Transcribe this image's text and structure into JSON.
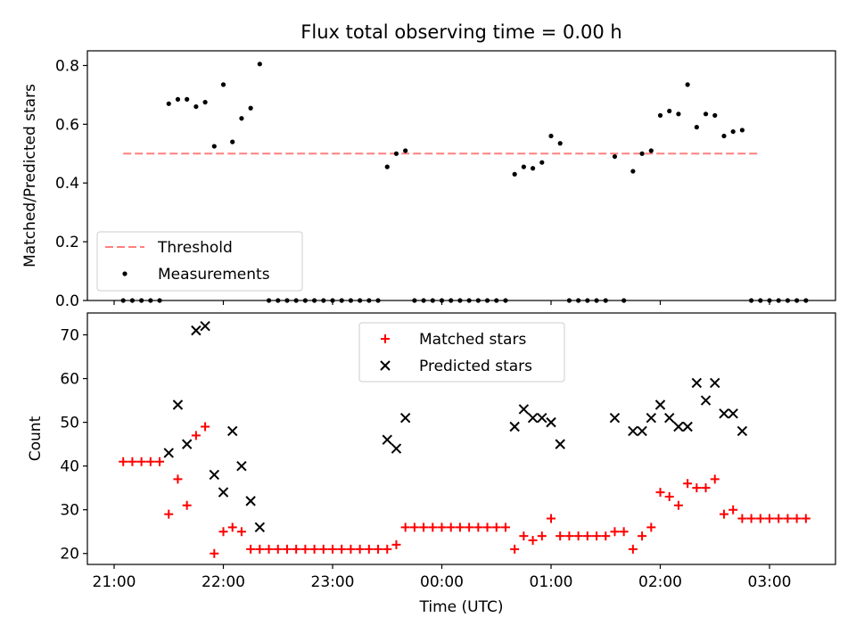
{
  "chart_data": [
    {
      "type": "scatter",
      "title": "Flux total observing time = 0.00 h",
      "xlabel": "",
      "ylabel": "Matched/Predicted stars",
      "ylim": [
        0,
        0.85
      ],
      "yticks": [
        "0.0",
        "0.2",
        "0.4",
        "0.6",
        "0.8"
      ],
      "ytick_values": [
        0,
        0.2,
        0.4,
        0.6,
        0.8
      ],
      "legend_position": "lower-left",
      "threshold": {
        "name": "Threshold",
        "value": 0.5,
        "x_range": [
          "21:05",
          "02:55"
        ],
        "color": "#ff7f7f"
      },
      "series": [
        {
          "name": "Measurements",
          "color": "#000000",
          "points": [
            [
              "21:05",
              0
            ],
            [
              "21:10",
              0
            ],
            [
              "21:15",
              0
            ],
            [
              "21:20",
              0
            ],
            [
              "21:25",
              0
            ],
            [
              "21:30",
              0.67
            ],
            [
              "21:35",
              0.685
            ],
            [
              "21:40",
              0.685
            ],
            [
              "21:45",
              0.66
            ],
            [
              "21:50",
              0.675
            ],
            [
              "21:55",
              0.525
            ],
            [
              "22:00",
              0.735
            ],
            [
              "22:05",
              0.54
            ],
            [
              "22:10",
              0.62
            ],
            [
              "22:15",
              0.655
            ],
            [
              "22:20",
              0.805
            ],
            [
              "22:25",
              0
            ],
            [
              "22:30",
              0
            ],
            [
              "22:35",
              0
            ],
            [
              "22:40",
              0
            ],
            [
              "22:45",
              0
            ],
            [
              "22:50",
              0
            ],
            [
              "22:55",
              0
            ],
            [
              "23:00",
              0
            ],
            [
              "23:05",
              0
            ],
            [
              "23:10",
              0
            ],
            [
              "23:15",
              0
            ],
            [
              "23:20",
              0
            ],
            [
              "23:25",
              0
            ],
            [
              "23:30",
              0.455
            ],
            [
              "23:35",
              0.5
            ],
            [
              "23:40",
              0.51
            ],
            [
              "23:45",
              0
            ],
            [
              "23:50",
              0
            ],
            [
              "23:55",
              0
            ],
            [
              "00:00",
              0
            ],
            [
              "00:05",
              0
            ],
            [
              "00:10",
              0
            ],
            [
              "00:15",
              0
            ],
            [
              "00:20",
              0
            ],
            [
              "00:25",
              0
            ],
            [
              "00:30",
              0
            ],
            [
              "00:35",
              0
            ],
            [
              "00:40",
              0.43
            ],
            [
              "00:45",
              0.455
            ],
            [
              "00:50",
              0.45
            ],
            [
              "00:55",
              0.47
            ],
            [
              "01:00",
              0.56
            ],
            [
              "01:05",
              0.535
            ],
            [
              "01:10",
              0
            ],
            [
              "01:15",
              0
            ],
            [
              "01:20",
              0
            ],
            [
              "01:25",
              0
            ],
            [
              "01:30",
              0
            ],
            [
              "01:35",
              0.49
            ],
            [
              "01:40",
              0
            ],
            [
              "01:45",
              0.44
            ],
            [
              "01:50",
              0.5
            ],
            [
              "01:55",
              0.51
            ],
            [
              "02:00",
              0.63
            ],
            [
              "02:05",
              0.645
            ],
            [
              "02:10",
              0.635
            ],
            [
              "02:15",
              0.735
            ],
            [
              "02:20",
              0.59
            ],
            [
              "02:25",
              0.635
            ],
            [
              "02:30",
              0.63
            ],
            [
              "02:35",
              0.56
            ],
            [
              "02:40",
              0.575
            ],
            [
              "02:45",
              0.58
            ],
            [
              "02:50",
              0
            ],
            [
              "02:55",
              0
            ],
            [
              "03:00",
              0
            ],
            [
              "03:05",
              0
            ],
            [
              "03:10",
              0
            ],
            [
              "03:15",
              0
            ],
            [
              "03:20",
              0
            ]
          ]
        }
      ]
    },
    {
      "type": "scatter",
      "title": "",
      "xlabel": "Time (UTC)",
      "ylabel": "Count",
      "ylim": [
        17.5,
        75
      ],
      "yticks": [
        "20",
        "30",
        "40",
        "50",
        "60",
        "70"
      ],
      "ytick_values": [
        20,
        30,
        40,
        50,
        60,
        70
      ],
      "xticks": [
        "21:00",
        "22:00",
        "23:00",
        "00:00",
        "01:00",
        "02:00",
        "03:00"
      ],
      "legend_position": "upper-center",
      "series": [
        {
          "name": "Matched stars",
          "color": "#ff0000",
          "marker": "plus",
          "points": [
            [
              "21:05",
              41
            ],
            [
              "21:10",
              41
            ],
            [
              "21:15",
              41
            ],
            [
              "21:20",
              41
            ],
            [
              "21:25",
              41
            ],
            [
              "21:30",
              29
            ],
            [
              "21:35",
              37
            ],
            [
              "21:40",
              31
            ],
            [
              "21:45",
              47
            ],
            [
              "21:50",
              49
            ],
            [
              "21:55",
              20
            ],
            [
              "22:00",
              25
            ],
            [
              "22:05",
              26
            ],
            [
              "22:10",
              25
            ],
            [
              "22:15",
              21
            ],
            [
              "22:20",
              21
            ],
            [
              "22:25",
              21
            ],
            [
              "22:30",
              21
            ],
            [
              "22:35",
              21
            ],
            [
              "22:40",
              21
            ],
            [
              "22:45",
              21
            ],
            [
              "22:50",
              21
            ],
            [
              "22:55",
              21
            ],
            [
              "23:00",
              21
            ],
            [
              "23:05",
              21
            ],
            [
              "23:10",
              21
            ],
            [
              "23:15",
              21
            ],
            [
              "23:20",
              21
            ],
            [
              "23:25",
              21
            ],
            [
              "23:30",
              21
            ],
            [
              "23:35",
              22
            ],
            [
              "23:40",
              26
            ],
            [
              "23:45",
              26
            ],
            [
              "23:50",
              26
            ],
            [
              "23:55",
              26
            ],
            [
              "00:00",
              26
            ],
            [
              "00:05",
              26
            ],
            [
              "00:10",
              26
            ],
            [
              "00:15",
              26
            ],
            [
              "00:20",
              26
            ],
            [
              "00:25",
              26
            ],
            [
              "00:30",
              26
            ],
            [
              "00:35",
              26
            ],
            [
              "00:40",
              21
            ],
            [
              "00:45",
              24
            ],
            [
              "00:50",
              23
            ],
            [
              "00:55",
              24
            ],
            [
              "01:00",
              28
            ],
            [
              "01:05",
              24
            ],
            [
              "01:10",
              24
            ],
            [
              "01:15",
              24
            ],
            [
              "01:20",
              24
            ],
            [
              "01:25",
              24
            ],
            [
              "01:30",
              24
            ],
            [
              "01:35",
              25
            ],
            [
              "01:40",
              25
            ],
            [
              "01:45",
              21
            ],
            [
              "01:50",
              24
            ],
            [
              "01:55",
              26
            ],
            [
              "02:00",
              34
            ],
            [
              "02:05",
              33
            ],
            [
              "02:10",
              31
            ],
            [
              "02:15",
              36
            ],
            [
              "02:20",
              35
            ],
            [
              "02:25",
              35
            ],
            [
              "02:30",
              37
            ],
            [
              "02:35",
              29
            ],
            [
              "02:40",
              30
            ],
            [
              "02:45",
              28
            ],
            [
              "02:50",
              28
            ],
            [
              "02:55",
              28
            ],
            [
              "03:00",
              28
            ],
            [
              "03:05",
              28
            ],
            [
              "03:10",
              28
            ],
            [
              "03:15",
              28
            ],
            [
              "03:20",
              28
            ]
          ]
        },
        {
          "name": "Predicted stars",
          "color": "#000000",
          "marker": "x",
          "points": [
            [
              "21:30",
              43
            ],
            [
              "21:35",
              54
            ],
            [
              "21:40",
              45
            ],
            [
              "21:45",
              71
            ],
            [
              "21:50",
              72
            ],
            [
              "21:55",
              38
            ],
            [
              "22:00",
              34
            ],
            [
              "22:05",
              48
            ],
            [
              "22:10",
              40
            ],
            [
              "22:15",
              32
            ],
            [
              "22:20",
              26
            ],
            [
              "23:30",
              46
            ],
            [
              "23:35",
              44
            ],
            [
              "23:40",
              51
            ],
            [
              "00:40",
              49
            ],
            [
              "00:45",
              53
            ],
            [
              "00:50",
              51
            ],
            [
              "00:55",
              51
            ],
            [
              "01:00",
              50
            ],
            [
              "01:05",
              45
            ],
            [
              "01:35",
              51
            ],
            [
              "01:45",
              48
            ],
            [
              "01:50",
              48
            ],
            [
              "01:55",
              51
            ],
            [
              "02:00",
              54
            ],
            [
              "02:05",
              51
            ],
            [
              "02:10",
              49
            ],
            [
              "02:15",
              49
            ],
            [
              "02:20",
              59
            ],
            [
              "02:25",
              55
            ],
            [
              "02:30",
              59
            ],
            [
              "02:35",
              52
            ],
            [
              "02:40",
              52
            ],
            [
              "02:45",
              48
            ]
          ]
        }
      ]
    }
  ]
}
